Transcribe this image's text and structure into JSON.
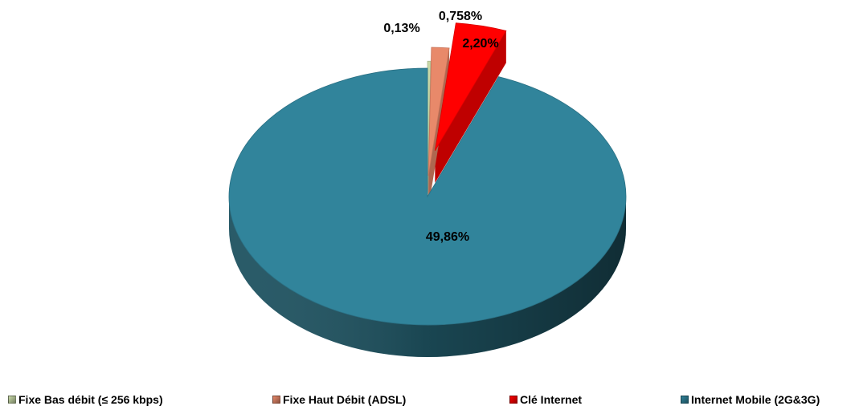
{
  "chart_data": {
    "type": "pie",
    "title": "",
    "three_d": true,
    "slices": [
      {
        "name": "Fixe Bas débit (≤ 256 kbps)",
        "value": 0.13,
        "label": "0,13%",
        "color": "#c8d9a8",
        "exploded": true
      },
      {
        "name": "Fixe Haut Débit (ADSL)",
        "value": 0.758,
        "label": "0,758%",
        "color": "#e8896a",
        "exploded": true
      },
      {
        "name": "Clé Internet",
        "value": 2.2,
        "label": "2,20%",
        "color": "#ff0000",
        "exploded": true
      },
      {
        "name": "Internet Mobile (2G&3G)",
        "value": 49.86,
        "label": "49,86%",
        "color": "#31849b",
        "exploded": false
      }
    ],
    "legend": {
      "position": "bottom"
    }
  }
}
